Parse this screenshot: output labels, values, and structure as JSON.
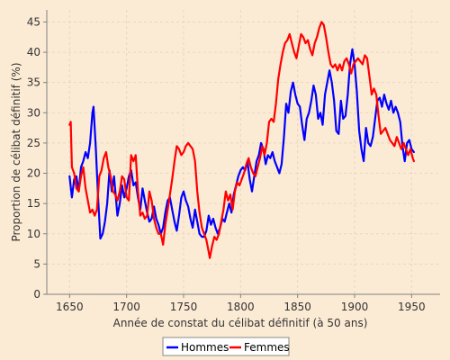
{
  "colors": {
    "background": "#fcebd4",
    "grid": "#e8d6bf",
    "axis": "#808080",
    "hommes": "#0000ff",
    "femmes": "#ff0000"
  },
  "chart_data": {
    "type": "line",
    "title": "",
    "xlabel": "Année de constat du célibat définitif (à 50 ans)",
    "ylabel": "Proportion de célibat définitif (%)",
    "xlim": [
      1630,
      1975
    ],
    "ylim": [
      0,
      47
    ],
    "xticks": [
      1650,
      1700,
      1750,
      1800,
      1850,
      1900,
      1950
    ],
    "yticks": [
      0,
      5,
      10,
      15,
      20,
      25,
      30,
      35,
      40,
      45
    ],
    "grid": true,
    "legend_position": "bottom",
    "series": [
      {
        "name": "Hommes",
        "color": "#0000ff",
        "points": [
          [
            1650,
            19.5
          ],
          [
            1652,
            16.0
          ],
          [
            1654,
            19.0
          ],
          [
            1656,
            19.5
          ],
          [
            1658,
            17.0
          ],
          [
            1660,
            21.0
          ],
          [
            1662,
            22.0
          ],
          [
            1664,
            23.5
          ],
          [
            1666,
            22.5
          ],
          [
            1668,
            25.0
          ],
          [
            1670,
            30.0
          ],
          [
            1671,
            31.0
          ],
          [
            1673,
            24.0
          ],
          [
            1675,
            16.0
          ],
          [
            1677,
            9.2
          ],
          [
            1679,
            10.0
          ],
          [
            1681,
            12.0
          ],
          [
            1683,
            15.0
          ],
          [
            1685,
            20.5
          ],
          [
            1687,
            17.0
          ],
          [
            1689,
            19.5
          ],
          [
            1692,
            13.0
          ],
          [
            1694,
            15.0
          ],
          [
            1696,
            18.0
          ],
          [
            1698,
            16.0
          ],
          [
            1700,
            17.5
          ],
          [
            1702,
            19.5
          ],
          [
            1704,
            20.5
          ],
          [
            1706,
            18.0
          ],
          [
            1708,
            18.5
          ],
          [
            1710,
            16.0
          ],
          [
            1712,
            14.0
          ],
          [
            1714,
            17.5
          ],
          [
            1716,
            15.5
          ],
          [
            1718,
            13.5
          ],
          [
            1720,
            12.0
          ],
          [
            1722,
            12.5
          ],
          [
            1724,
            14.5
          ],
          [
            1726,
            12.5
          ],
          [
            1728,
            11.5
          ],
          [
            1730,
            10.0
          ],
          [
            1732,
            11.0
          ],
          [
            1734,
            13.5
          ],
          [
            1736,
            15.5
          ],
          [
            1738,
            16.0
          ],
          [
            1740,
            14.0
          ],
          [
            1742,
            12.0
          ],
          [
            1744,
            10.5
          ],
          [
            1746,
            13.0
          ],
          [
            1748,
            16.0
          ],
          [
            1750,
            17.0
          ],
          [
            1752,
            15.5
          ],
          [
            1754,
            14.5
          ],
          [
            1756,
            12.5
          ],
          [
            1758,
            11.0
          ],
          [
            1760,
            14.0
          ],
          [
            1762,
            12.0
          ],
          [
            1764,
            10.0
          ],
          [
            1766,
            9.5
          ],
          [
            1768,
            9.5
          ],
          [
            1770,
            10.5
          ],
          [
            1772,
            13.0
          ],
          [
            1774,
            11.5
          ],
          [
            1776,
            12.5
          ],
          [
            1778,
            11.0
          ],
          [
            1780,
            10.0
          ],
          [
            1782,
            11.0
          ],
          [
            1784,
            12.5
          ],
          [
            1786,
            12.0
          ],
          [
            1788,
            13.5
          ],
          [
            1790,
            15.0
          ],
          [
            1792,
            13.5
          ],
          [
            1794,
            16.5
          ],
          [
            1796,
            18.0
          ],
          [
            1798,
            19.5
          ],
          [
            1800,
            20.5
          ],
          [
            1802,
            21.0
          ],
          [
            1804,
            20.5
          ],
          [
            1806,
            22.0
          ],
          [
            1808,
            19.0
          ],
          [
            1810,
            17.0
          ],
          [
            1812,
            19.5
          ],
          [
            1814,
            22.0
          ],
          [
            1816,
            23.0
          ],
          [
            1818,
            25.0
          ],
          [
            1820,
            24.0
          ],
          [
            1822,
            21.5
          ],
          [
            1824,
            23.0
          ],
          [
            1826,
            22.5
          ],
          [
            1828,
            23.5
          ],
          [
            1830,
            22.0
          ],
          [
            1832,
            21.0
          ],
          [
            1834,
            20.0
          ],
          [
            1836,
            21.5
          ],
          [
            1838,
            26.0
          ],
          [
            1840,
            31.5
          ],
          [
            1842,
            30.0
          ],
          [
            1844,
            33.5
          ],
          [
            1846,
            35.0
          ],
          [
            1848,
            33.0
          ],
          [
            1850,
            31.5
          ],
          [
            1852,
            31.0
          ],
          [
            1854,
            28.0
          ],
          [
            1856,
            25.5
          ],
          [
            1858,
            29.0
          ],
          [
            1860,
            30.0
          ],
          [
            1862,
            32.0
          ],
          [
            1864,
            34.5
          ],
          [
            1866,
            33.0
          ],
          [
            1868,
            29.0
          ],
          [
            1870,
            30.0
          ],
          [
            1872,
            28.0
          ],
          [
            1874,
            33.0
          ],
          [
            1876,
            35.0
          ],
          [
            1878,
            37.0
          ],
          [
            1880,
            35.0
          ],
          [
            1882,
            32.0
          ],
          [
            1884,
            27.0
          ],
          [
            1886,
            26.5
          ],
          [
            1888,
            32.0
          ],
          [
            1890,
            29.0
          ],
          [
            1892,
            29.5
          ],
          [
            1894,
            33.0
          ],
          [
            1896,
            38.0
          ],
          [
            1898,
            40.5
          ],
          [
            1900,
            38.0
          ],
          [
            1902,
            33.5
          ],
          [
            1904,
            27.0
          ],
          [
            1906,
            24.0
          ],
          [
            1908,
            22.0
          ],
          [
            1910,
            27.5
          ],
          [
            1912,
            25.0
          ],
          [
            1914,
            24.5
          ],
          [
            1916,
            26.0
          ],
          [
            1918,
            29.0
          ],
          [
            1920,
            32.0
          ],
          [
            1922,
            32.5
          ],
          [
            1924,
            31.0
          ],
          [
            1926,
            33.0
          ],
          [
            1928,
            31.5
          ],
          [
            1930,
            30.5
          ],
          [
            1932,
            32.0
          ],
          [
            1934,
            30.0
          ],
          [
            1936,
            31.0
          ],
          [
            1938,
            30.0
          ],
          [
            1940,
            28.5
          ],
          [
            1942,
            24.5
          ],
          [
            1944,
            22.0
          ],
          [
            1946,
            25.0
          ],
          [
            1948,
            25.5
          ],
          [
            1950,
            24.0
          ],
          [
            1952,
            23.5
          ]
        ]
      },
      {
        "name": "Femmes",
        "color": "#ff0000",
        "points": [
          [
            1650,
            28.0
          ],
          [
            1651,
            28.5
          ],
          [
            1652,
            21.0
          ],
          [
            1654,
            20.0
          ],
          [
            1656,
            17.5
          ],
          [
            1658,
            17.0
          ],
          [
            1660,
            19.5
          ],
          [
            1662,
            21.0
          ],
          [
            1664,
            17.5
          ],
          [
            1666,
            15.5
          ],
          [
            1668,
            13.5
          ],
          [
            1670,
            14.0
          ],
          [
            1672,
            13.0
          ],
          [
            1674,
            14.0
          ],
          [
            1676,
            19.5
          ],
          [
            1678,
            20.5
          ],
          [
            1680,
            22.5
          ],
          [
            1682,
            23.5
          ],
          [
            1684,
            21.0
          ],
          [
            1686,
            19.5
          ],
          [
            1688,
            17.0
          ],
          [
            1690,
            16.5
          ],
          [
            1692,
            15.5
          ],
          [
            1694,
            17.0
          ],
          [
            1696,
            19.5
          ],
          [
            1698,
            19.0
          ],
          [
            1700,
            16.0
          ],
          [
            1702,
            15.5
          ],
          [
            1704,
            23.0
          ],
          [
            1706,
            22.0
          ],
          [
            1708,
            23.0
          ],
          [
            1710,
            17.0
          ],
          [
            1712,
            13.0
          ],
          [
            1714,
            13.5
          ],
          [
            1716,
            12.5
          ],
          [
            1718,
            13.0
          ],
          [
            1720,
            17.0
          ],
          [
            1722,
            15.5
          ],
          [
            1724,
            12.5
          ],
          [
            1726,
            11.0
          ],
          [
            1728,
            10.0
          ],
          [
            1730,
            10.0
          ],
          [
            1732,
            8.2
          ],
          [
            1734,
            11.5
          ],
          [
            1736,
            14.0
          ],
          [
            1738,
            16.5
          ],
          [
            1740,
            19.0
          ],
          [
            1742,
            22.0
          ],
          [
            1744,
            24.5
          ],
          [
            1746,
            24.0
          ],
          [
            1748,
            23.0
          ],
          [
            1750,
            23.5
          ],
          [
            1752,
            24.5
          ],
          [
            1754,
            25.0
          ],
          [
            1756,
            24.5
          ],
          [
            1758,
            24.0
          ],
          [
            1760,
            22.0
          ],
          [
            1762,
            17.0
          ],
          [
            1764,
            13.5
          ],
          [
            1766,
            11.0
          ],
          [
            1768,
            10.0
          ],
          [
            1770,
            9.0
          ],
          [
            1772,
            7.0
          ],
          [
            1773,
            6.0
          ],
          [
            1775,
            8.0
          ],
          [
            1777,
            9.5
          ],
          [
            1779,
            9.0
          ],
          [
            1781,
            10.0
          ],
          [
            1783,
            12.0
          ],
          [
            1785,
            14.0
          ],
          [
            1787,
            17.0
          ],
          [
            1789,
            15.5
          ],
          [
            1791,
            16.5
          ],
          [
            1793,
            14.0
          ],
          [
            1795,
            17.0
          ],
          [
            1797,
            18.5
          ],
          [
            1799,
            18.0
          ],
          [
            1801,
            19.0
          ],
          [
            1803,
            20.0
          ],
          [
            1805,
            21.5
          ],
          [
            1807,
            22.5
          ],
          [
            1809,
            21.0
          ],
          [
            1811,
            20.0
          ],
          [
            1813,
            19.5
          ],
          [
            1815,
            21.0
          ],
          [
            1817,
            22.5
          ],
          [
            1819,
            24.5
          ],
          [
            1821,
            23.0
          ],
          [
            1823,
            25.0
          ],
          [
            1825,
            28.5
          ],
          [
            1827,
            29.0
          ],
          [
            1829,
            28.5
          ],
          [
            1831,
            31.5
          ],
          [
            1833,
            35.5
          ],
          [
            1835,
            38.0
          ],
          [
            1837,
            40.0
          ],
          [
            1839,
            41.5
          ],
          [
            1841,
            42.0
          ],
          [
            1843,
            43.0
          ],
          [
            1845,
            41.5
          ],
          [
            1847,
            40.0
          ],
          [
            1849,
            39.0
          ],
          [
            1851,
            41.0
          ],
          [
            1853,
            43.0
          ],
          [
            1855,
            42.5
          ],
          [
            1857,
            41.5
          ],
          [
            1859,
            42.0
          ],
          [
            1861,
            40.5
          ],
          [
            1863,
            39.5
          ],
          [
            1865,
            41.5
          ],
          [
            1867,
            42.5
          ],
          [
            1869,
            44.0
          ],
          [
            1871,
            45.0
          ],
          [
            1873,
            44.5
          ],
          [
            1875,
            42.5
          ],
          [
            1877,
            40.0
          ],
          [
            1879,
            38.0
          ],
          [
            1881,
            37.5
          ],
          [
            1883,
            38.0
          ],
          [
            1885,
            37.0
          ],
          [
            1887,
            38.0
          ],
          [
            1889,
            37.0
          ],
          [
            1891,
            38.5
          ],
          [
            1893,
            39.0
          ],
          [
            1895,
            38.0
          ],
          [
            1897,
            36.5
          ],
          [
            1899,
            38.0
          ],
          [
            1901,
            38.5
          ],
          [
            1903,
            39.0
          ],
          [
            1905,
            38.5
          ],
          [
            1907,
            38.0
          ],
          [
            1909,
            39.5
          ],
          [
            1911,
            39.0
          ],
          [
            1913,
            36.0
          ],
          [
            1915,
            33.0
          ],
          [
            1917,
            34.0
          ],
          [
            1919,
            33.0
          ],
          [
            1921,
            29.5
          ],
          [
            1923,
            26.5
          ],
          [
            1925,
            27.0
          ],
          [
            1927,
            27.5
          ],
          [
            1929,
            26.5
          ],
          [
            1931,
            25.5
          ],
          [
            1933,
            25.0
          ],
          [
            1935,
            24.5
          ],
          [
            1937,
            26.0
          ],
          [
            1939,
            25.0
          ],
          [
            1941,
            24.0
          ],
          [
            1943,
            25.0
          ],
          [
            1945,
            24.0
          ],
          [
            1947,
            23.0
          ],
          [
            1949,
            24.0
          ],
          [
            1951,
            22.5
          ],
          [
            1952,
            22.0
          ]
        ]
      }
    ]
  }
}
